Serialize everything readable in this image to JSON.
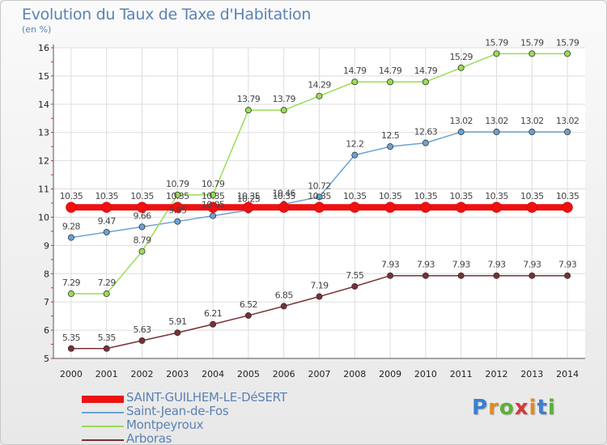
{
  "header": {
    "title": "Evolution du Taux de Taxe d'Habitation",
    "subtitle": "(en %)"
  },
  "chart_data": {
    "type": "line",
    "title": "Evolution du Taux de Taxe d'Habitation",
    "ylabel": "(en %)",
    "xlabel": "",
    "x": [
      "2000",
      "2001",
      "2002",
      "2003",
      "2004",
      "2005",
      "2006",
      "2007",
      "2008",
      "2009",
      "2010",
      "2011",
      "2012",
      "2013",
      "2014"
    ],
    "ylim": [
      5,
      16
    ],
    "yticks": [
      5,
      6,
      7,
      8,
      9,
      10,
      11,
      12,
      13,
      14,
      15,
      16
    ],
    "grid": true,
    "legend_position": "bottom-left",
    "series": [
      {
        "name": "SAINT-GUILHEM-LE-DéSERT",
        "color": "#ee1111",
        "values": [
          10.35,
          10.35,
          10.35,
          10.35,
          10.35,
          10.35,
          10.35,
          10.35,
          10.35,
          10.35,
          10.35,
          10.35,
          10.35,
          10.35,
          10.35
        ],
        "labels": [
          "10.35",
          "10.35",
          "10.35",
          "10.35",
          "10.35",
          "10.35",
          "10.35",
          "10.35",
          "10.35",
          "10.35",
          "10.35",
          "10.35",
          "10.35",
          "10.35",
          "10.35"
        ]
      },
      {
        "name": "Saint-Jean-de-Fos",
        "color": "#6aa2d4",
        "values": [
          9.28,
          9.47,
          9.66,
          9.85,
          10.05,
          10.25,
          10.46,
          10.72,
          12.2,
          12.5,
          12.63,
          13.02,
          13.02,
          13.02,
          13.02
        ],
        "labels": [
          "9.28",
          "9.47",
          "9.66",
          "9.85",
          "10.05",
          "10.25",
          "10.46",
          "10.72",
          "12.2",
          "12.5",
          "12.63",
          "13.02",
          "13.02",
          "13.02",
          "13.02"
        ]
      },
      {
        "name": "Montpeyroux",
        "color": "#99dd55",
        "values": [
          7.29,
          7.29,
          8.79,
          10.79,
          10.79,
          13.79,
          13.79,
          14.29,
          14.79,
          14.79,
          14.79,
          15.29,
          15.79,
          15.79,
          15.79
        ],
        "labels": [
          "7.29",
          "7.29",
          "8.79",
          "10.79",
          "10.79",
          "13.79",
          "13.79",
          "14.29",
          "14.79",
          "14.79",
          "14.79",
          "15.29",
          "15.79",
          "15.79",
          "15.79"
        ]
      },
      {
        "name": "Arboras",
        "color": "#7a3034",
        "values": [
          5.35,
          5.35,
          5.63,
          5.91,
          6.21,
          6.52,
          6.85,
          7.19,
          7.55,
          7.93,
          7.93,
          7.93,
          7.93,
          7.93,
          7.93
        ],
        "labels": [
          "5.35",
          "5.35",
          "5.63",
          "5.91",
          "6.21",
          "6.52",
          "6.85",
          "7.19",
          "7.55",
          "7.93",
          "7.93",
          "7.93",
          "7.93",
          "7.93",
          "7.93"
        ]
      }
    ]
  },
  "logo": {
    "text": "Proxiti"
  }
}
